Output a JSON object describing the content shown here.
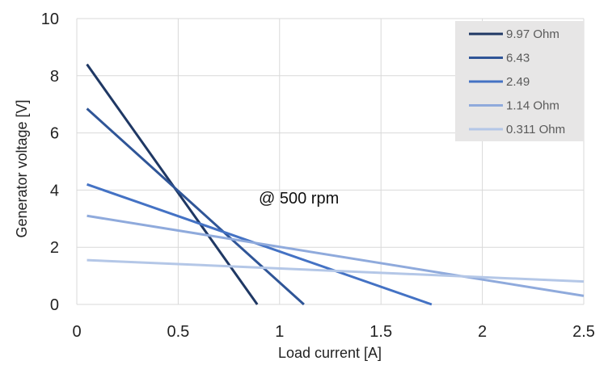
{
  "chart_data": {
    "type": "line",
    "title": "",
    "xlabel": "Load current [A]",
    "ylabel": "Generator voltage [V]",
    "xlim": [
      0,
      2.5
    ],
    "ylim": [
      0,
      10
    ],
    "x_ticks": [
      "0",
      "0.5",
      "1",
      "1.5",
      "2",
      "2.5"
    ],
    "y_ticks": [
      "0",
      "2",
      "4",
      "6",
      "8",
      "10"
    ],
    "grid": true,
    "legend_position": "top-right",
    "annotation": "@ 500 rpm",
    "series": [
      {
        "name": "9.97 Ohm",
        "color": "#1f3864",
        "x": [
          0.05,
          0.89
        ],
        "y": [
          8.4,
          0
        ]
      },
      {
        "name": "6.43",
        "color": "#2f5597",
        "x": [
          0.05,
          1.12
        ],
        "y": [
          6.85,
          0
        ]
      },
      {
        "name": "2.49",
        "color": "#4472c4",
        "x": [
          0.05,
          1.75
        ],
        "y": [
          4.2,
          0
        ]
      },
      {
        "name": "1.14 Ohm",
        "color": "#8faadc",
        "x": [
          0.05,
          2.5
        ],
        "y": [
          3.1,
          0.3
        ]
      },
      {
        "name": "0.311 Ohm",
        "color": "#b4c7e7",
        "x": [
          0.05,
          2.5
        ],
        "y": [
          1.55,
          0.8
        ]
      }
    ]
  }
}
